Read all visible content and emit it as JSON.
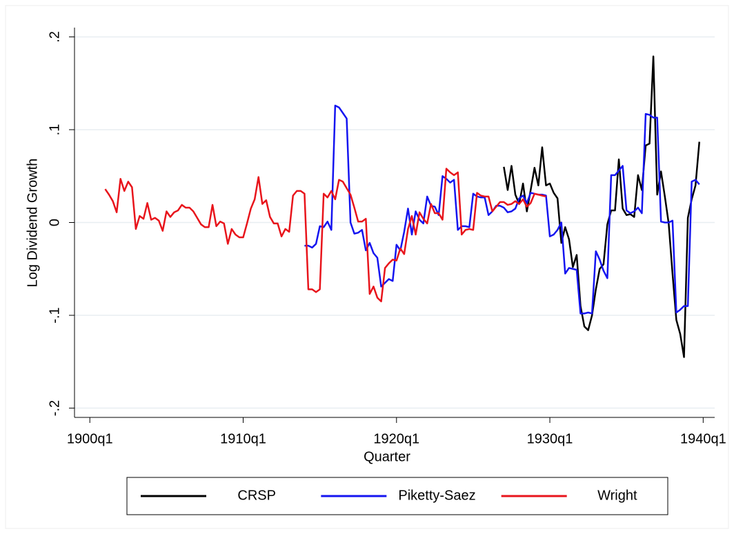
{
  "chart_data": {
    "type": "line",
    "y_label": "Log Dividend Growth",
    "x_label": "Quarter",
    "x": [
      "1901q1",
      "1901q2",
      "1901q3",
      "1901q4",
      "1902q1",
      "1902q2",
      "1902q3",
      "1902q4",
      "1903q1",
      "1903q2",
      "1903q3",
      "1903q4",
      "1904q1",
      "1904q2",
      "1904q3",
      "1904q4",
      "1905q1",
      "1905q2",
      "1905q3",
      "1905q4",
      "1906q1",
      "1906q2",
      "1906q3",
      "1906q4",
      "1907q1",
      "1907q2",
      "1907q3",
      "1907q4",
      "1908q1",
      "1908q2",
      "1908q3",
      "1908q4",
      "1909q1",
      "1909q2",
      "1909q3",
      "1909q4",
      "1910q1",
      "1910q2",
      "1910q3",
      "1910q4",
      "1911q1",
      "1911q2",
      "1911q3",
      "1911q4",
      "1912q1",
      "1912q2",
      "1912q3",
      "1912q4",
      "1913q1",
      "1913q2",
      "1913q3",
      "1913q4",
      "1914q1",
      "1914q2",
      "1914q3",
      "1914q4",
      "1915q1",
      "1915q2",
      "1915q3",
      "1915q4",
      "1916q1",
      "1916q2",
      "1916q3",
      "1916q4",
      "1917q1",
      "1917q2",
      "1917q3",
      "1917q4",
      "1918q1",
      "1918q2",
      "1918q3",
      "1918q4",
      "1919q1",
      "1919q2",
      "1919q3",
      "1919q4",
      "1920q1",
      "1920q2",
      "1920q3",
      "1920q4",
      "1921q1",
      "1921q2",
      "1921q3",
      "1921q4",
      "1922q1",
      "1922q2",
      "1922q3",
      "1922q4",
      "1923q1",
      "1923q2",
      "1923q3",
      "1923q4",
      "1924q1",
      "1924q2",
      "1924q3",
      "1924q4",
      "1925q1",
      "1925q2",
      "1925q3",
      "1925q4",
      "1926q1",
      "1926q2",
      "1926q3",
      "1926q4",
      "1927q1",
      "1927q2",
      "1927q3",
      "1927q4",
      "1928q1",
      "1928q2",
      "1928q3",
      "1928q4",
      "1929q1",
      "1929q2",
      "1929q3",
      "1929q4",
      "1930q1",
      "1930q2",
      "1930q3",
      "1930q4",
      "1931q1",
      "1931q2",
      "1931q3",
      "1931q4",
      "1932q1",
      "1932q2",
      "1932q3",
      "1932q4",
      "1933q1",
      "1933q2",
      "1933q3",
      "1933q4",
      "1934q1",
      "1934q2",
      "1934q3",
      "1934q4",
      "1935q1",
      "1935q2",
      "1935q3",
      "1935q4",
      "1936q1",
      "1936q2",
      "1936q3",
      "1936q4",
      "1937q1",
      "1937q2",
      "1937q3",
      "1937q4",
      "1938q1",
      "1938q2",
      "1938q3",
      "1938q4",
      "1939q1",
      "1939q2",
      "1939q3",
      "1939q4"
    ],
    "series": [
      {
        "name": "CRSP",
        "color": "#000000",
        "values": [
          null,
          null,
          null,
          null,
          null,
          null,
          null,
          null,
          null,
          null,
          null,
          null,
          null,
          null,
          null,
          null,
          null,
          null,
          null,
          null,
          null,
          null,
          null,
          null,
          null,
          null,
          null,
          null,
          null,
          null,
          null,
          null,
          null,
          null,
          null,
          null,
          null,
          null,
          null,
          null,
          null,
          null,
          null,
          null,
          null,
          null,
          null,
          null,
          null,
          null,
          null,
          null,
          null,
          null,
          null,
          null,
          null,
          null,
          null,
          null,
          null,
          null,
          null,
          null,
          null,
          null,
          null,
          null,
          null,
          null,
          null,
          null,
          null,
          null,
          null,
          null,
          null,
          null,
          null,
          null,
          null,
          null,
          null,
          null,
          null,
          null,
          null,
          null,
          null,
          null,
          null,
          null,
          null,
          null,
          null,
          null,
          null,
          null,
          null,
          null,
          null,
          null,
          null,
          null,
          0.06,
          0.035,
          0.061,
          0.03,
          0.02,
          0.042,
          0.012,
          0.035,
          0.059,
          0.04,
          0.081,
          0.04,
          0.042,
          0.032,
          0.026,
          -0.022,
          -0.005,
          -0.018,
          -0.048,
          -0.035,
          -0.09,
          -0.112,
          -0.116,
          -0.1,
          -0.072,
          -0.05,
          -0.045,
          -0.002,
          0.013,
          0.013,
          0.068,
          0.015,
          0.008,
          0.009,
          0.006,
          0.051,
          0.035,
          0.083,
          0.085,
          0.179,
          0.03,
          0.055,
          0.028,
          -0.001,
          -0.055,
          -0.105,
          -0.12,
          -0.145,
          0.005,
          0.025,
          0.04,
          0.087
        ]
      },
      {
        "name": "Piketty-Saez",
        "color": "#1414f0",
        "values": [
          null,
          null,
          null,
          null,
          null,
          null,
          null,
          null,
          null,
          null,
          null,
          null,
          null,
          null,
          null,
          null,
          null,
          null,
          null,
          null,
          null,
          null,
          null,
          null,
          null,
          null,
          null,
          null,
          null,
          null,
          null,
          null,
          null,
          null,
          null,
          null,
          null,
          null,
          null,
          null,
          null,
          null,
          null,
          null,
          null,
          null,
          null,
          null,
          null,
          null,
          null,
          null,
          -0.025,
          -0.025,
          -0.027,
          -0.023,
          -0.004,
          -0.005,
          0.001,
          -0.008,
          0.126,
          0.124,
          0.118,
          0.112,
          0.0,
          -0.012,
          -0.011,
          -0.008,
          -0.03,
          -0.022,
          -0.033,
          -0.038,
          -0.069,
          -0.065,
          -0.061,
          -0.063,
          -0.024,
          -0.03,
          -0.01,
          0.015,
          -0.013,
          0.012,
          0.003,
          -0.001,
          0.028,
          0.018,
          0.017,
          0.008,
          0.05,
          0.047,
          0.043,
          0.046,
          -0.008,
          -0.004,
          -0.004,
          -0.005,
          0.031,
          0.028,
          0.027,
          0.027,
          0.008,
          0.012,
          0.018,
          0.018,
          0.016,
          0.011,
          0.012,
          0.015,
          0.026,
          0.029,
          0.021,
          0.032,
          0.031,
          0.03,
          0.03,
          0.029,
          -0.015,
          -0.013,
          -0.008,
          0.0,
          -0.055,
          -0.049,
          -0.05,
          -0.051,
          -0.098,
          -0.098,
          -0.097,
          -0.098,
          -0.031,
          -0.04,
          -0.052,
          -0.06,
          0.051,
          0.051,
          0.056,
          0.061,
          0.013,
          0.01,
          0.012,
          0.016,
          0.01,
          0.117,
          0.116,
          0.113,
          0.113,
          0.001,
          0.0,
          0.0,
          0.002,
          -0.097,
          -0.094,
          -0.09,
          -0.09,
          0.044,
          0.046,
          0.041
        ]
      },
      {
        "name": "Wright",
        "color": "#e8141b",
        "values": [
          0.036,
          0.03,
          0.023,
          0.011,
          0.047,
          0.034,
          0.044,
          0.038,
          -0.007,
          0.007,
          0.004,
          0.021,
          0.003,
          0.005,
          0.002,
          -0.009,
          0.012,
          0.006,
          0.011,
          0.013,
          0.019,
          0.016,
          0.016,
          0.012,
          0.005,
          -0.002,
          -0.005,
          -0.005,
          0.019,
          -0.004,
          0.001,
          -0.001,
          -0.023,
          -0.007,
          -0.013,
          -0.016,
          -0.016,
          -0.001,
          0.015,
          0.025,
          0.049,
          0.02,
          0.024,
          0.006,
          -0.001,
          -0.001,
          -0.015,
          -0.007,
          -0.01,
          0.029,
          0.034,
          0.034,
          0.031,
          -0.072,
          -0.072,
          -0.075,
          -0.072,
          0.031,
          0.027,
          0.034,
          0.025,
          0.046,
          0.044,
          0.037,
          0.03,
          0.016,
          0.001,
          0.001,
          0.004,
          -0.077,
          -0.069,
          -0.081,
          -0.085,
          -0.049,
          -0.044,
          -0.04,
          -0.041,
          -0.028,
          -0.034,
          -0.007,
          0.007,
          -0.013,
          0.011,
          0.004,
          -0.001,
          0.02,
          0.01,
          0.01,
          0.003,
          0.058,
          0.054,
          0.051,
          0.054,
          -0.013,
          -0.008,
          -0.007,
          -0.008,
          0.032,
          0.029,
          0.028,
          0.028,
          0.012,
          0.017,
          0.022,
          0.022,
          0.019,
          0.02,
          0.023,
          0.02,
          0.025,
          0.017,
          0.021,
          0.031,
          0.03,
          0.029,
          0.028,
          null,
          null,
          null,
          null,
          null,
          null,
          null,
          null,
          null,
          null,
          null,
          null,
          null,
          null,
          null,
          null,
          null,
          null,
          null,
          null,
          null,
          null,
          null,
          null,
          null,
          null,
          null,
          null,
          null,
          null,
          null,
          null,
          null,
          null,
          null,
          null,
          null,
          null,
          null,
          null
        ]
      }
    ],
    "xlim": [
      "1899q1",
      "1940q4"
    ],
    "xticks": [
      "1900q1",
      "1910q1",
      "1920q1",
      "1930q1",
      "1940q1"
    ],
    "ylim": [
      -0.21,
      0.21
    ],
    "yticks": [
      {
        "value": -0.2,
        "label": "-.2"
      },
      {
        "value": -0.1,
        "label": "-.1"
      },
      0,
      {
        "value": 0.1,
        "label": ".1"
      },
      {
        "value": 0.2,
        "label": ".2"
      }
    ],
    "grid": true,
    "legend": "bottom"
  }
}
